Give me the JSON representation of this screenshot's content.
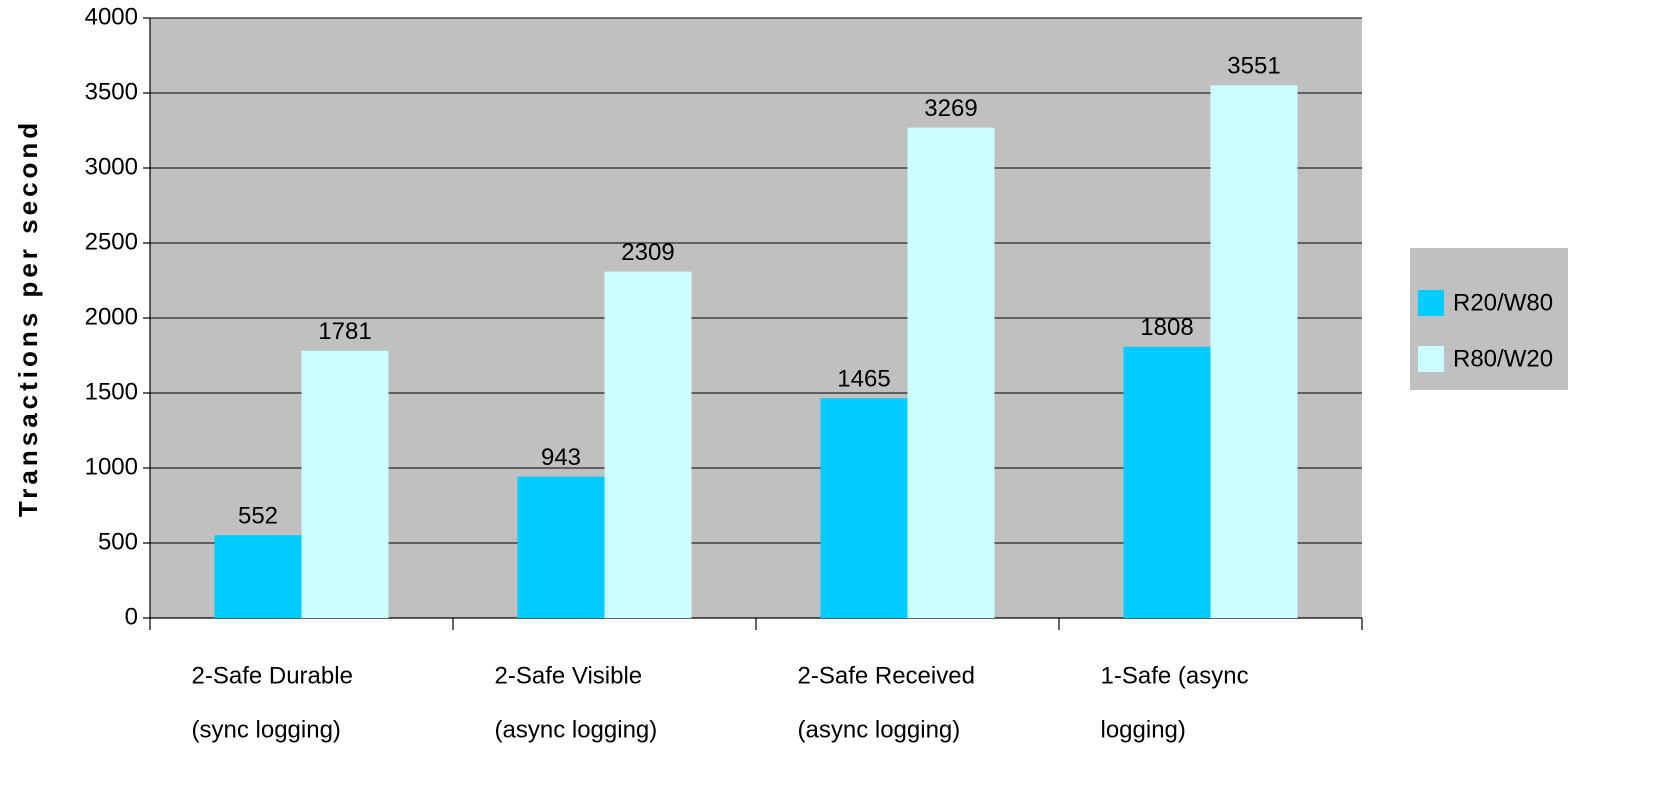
{
  "chart_data": {
    "type": "bar",
    "y_label": "Transactions per second",
    "categories": [
      [
        "2-Safe Durable",
        "(sync logging)"
      ],
      [
        "2-Safe Visible",
        "(async logging)"
      ],
      [
        "2-Safe Received",
        "(async logging)"
      ],
      [
        "1-Safe (async",
        "logging)"
      ]
    ],
    "series": [
      {
        "name": "R20/W80",
        "color": "#00ccff",
        "values": [
          552,
          943,
          1465,
          1808
        ]
      },
      {
        "name": "R80/W20",
        "color": "#ccffff",
        "values": [
          1781,
          2309,
          3269,
          3551
        ]
      }
    ],
    "ylim": [
      0,
      4000
    ],
    "yticks": [
      0,
      500,
      1000,
      1500,
      2000,
      2500,
      3000,
      3500,
      4000
    ],
    "grid": true,
    "plot_background": "#c0c0c0",
    "legend": "right"
  }
}
